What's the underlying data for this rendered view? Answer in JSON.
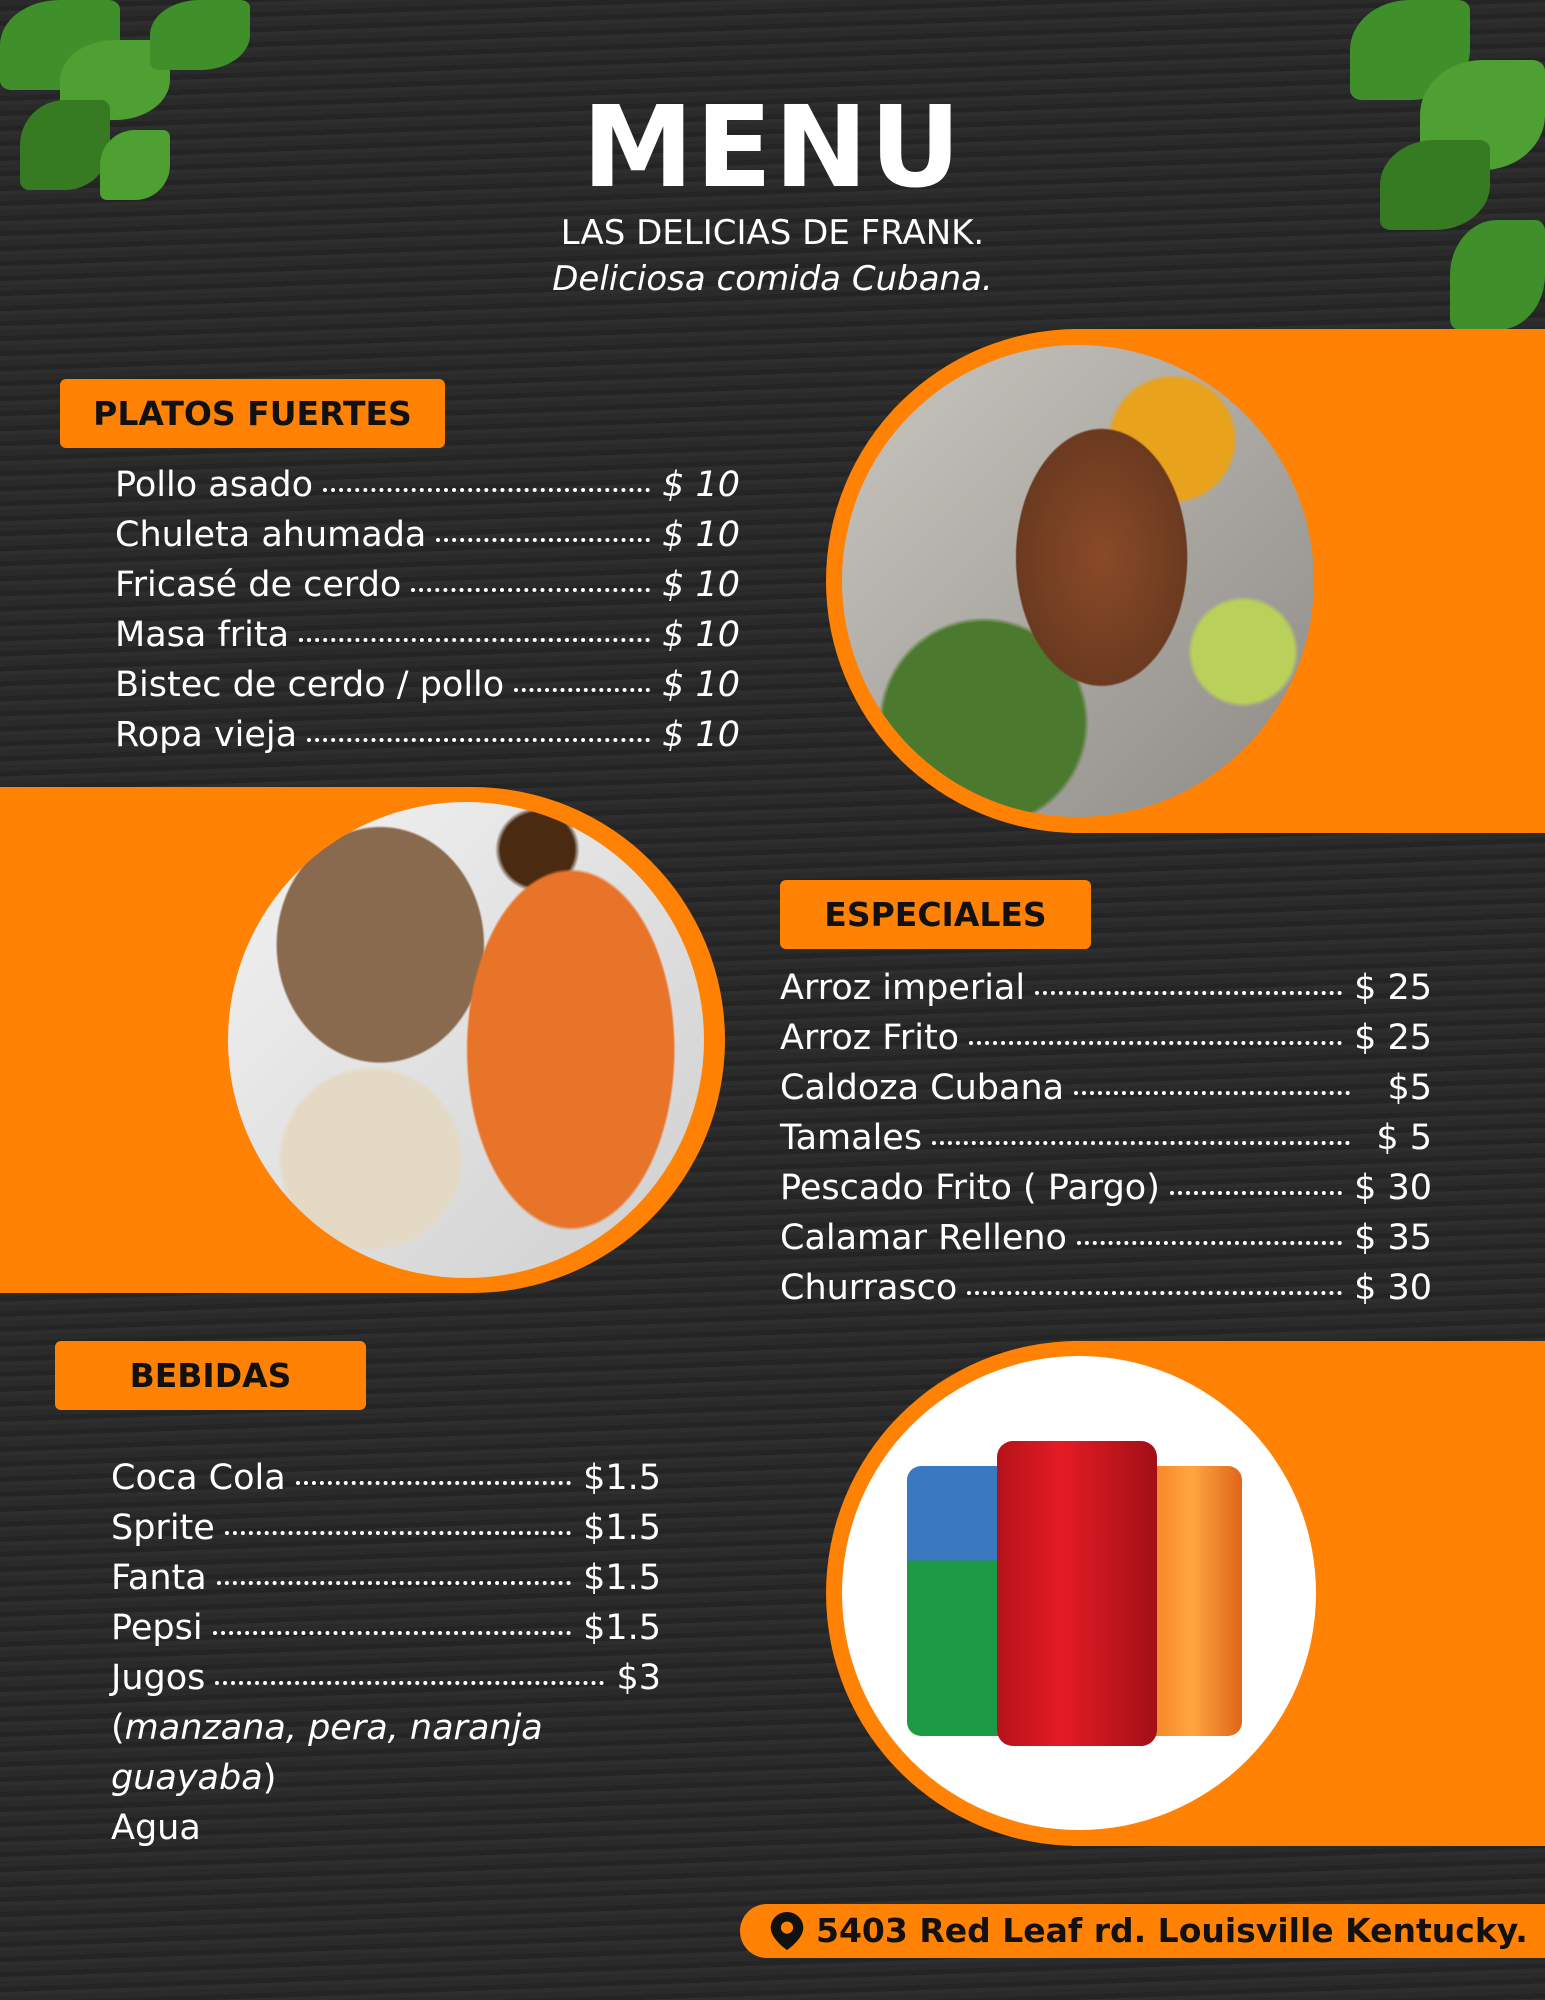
{
  "header": {
    "title": "MENU",
    "restaurant": "LAS DELICIAS DE FRANK.",
    "tagline": "Deliciosa comida Cubana."
  },
  "colors": {
    "accent": "#ff8205",
    "background": "#282828"
  },
  "platos_fuertes": {
    "label": "PLATOS FUERTES",
    "items": [
      {
        "name": "Pollo asado",
        "price": "$ 10"
      },
      {
        "name": "Chuleta ahumada",
        "price": "$ 10"
      },
      {
        "name": "Fricasé de cerdo",
        "price": "$ 10"
      },
      {
        "name": "Masa frita",
        "price": "$ 10"
      },
      {
        "name": "Bistec de cerdo / pollo",
        "price": "$ 10"
      },
      {
        "name": "Ropa vieja",
        "price": "$ 10"
      }
    ]
  },
  "especiales": {
    "label": "ESPECIALES",
    "items": [
      {
        "name": "Arroz imperial",
        "price": "$ 25"
      },
      {
        "name": "Arroz Frito",
        "price": "$ 25"
      },
      {
        "name": "Caldoza Cubana",
        "price": "$5"
      },
      {
        "name": "Tamales",
        "price": "$ 5"
      },
      {
        "name": "Pescado Frito ( Pargo)",
        "price": "$ 30"
      },
      {
        "name": "Calamar Relleno",
        "price": "$ 35"
      },
      {
        "name": "Churrasco",
        "price": "$ 30"
      }
    ]
  },
  "bebidas": {
    "label": "BEBIDAS",
    "items": [
      {
        "name": "Coca Cola",
        "price": "$1.5"
      },
      {
        "name": "Sprite",
        "price": "$1.5"
      },
      {
        "name": "Fanta",
        "price": "$1.5"
      },
      {
        "name": "Pepsi",
        "price": "$1.5"
      },
      {
        "name": "Jugos",
        "price": "$3"
      }
    ],
    "note_open": "(",
    "note": "manzana, pera, naranja guayaba",
    "note_close": ")",
    "extra": "Agua"
  },
  "images": {
    "fish": "fried-fish-photo",
    "plate": "steak-rice-photo",
    "sodas": "soda-cans-photo",
    "soda_brands": [
      "Sprite",
      "Coca-Cola",
      "Fanta"
    ]
  },
  "footer": {
    "icon": "location-pin-icon",
    "address": "5403 Red Leaf rd. Louisville Kentucky."
  }
}
